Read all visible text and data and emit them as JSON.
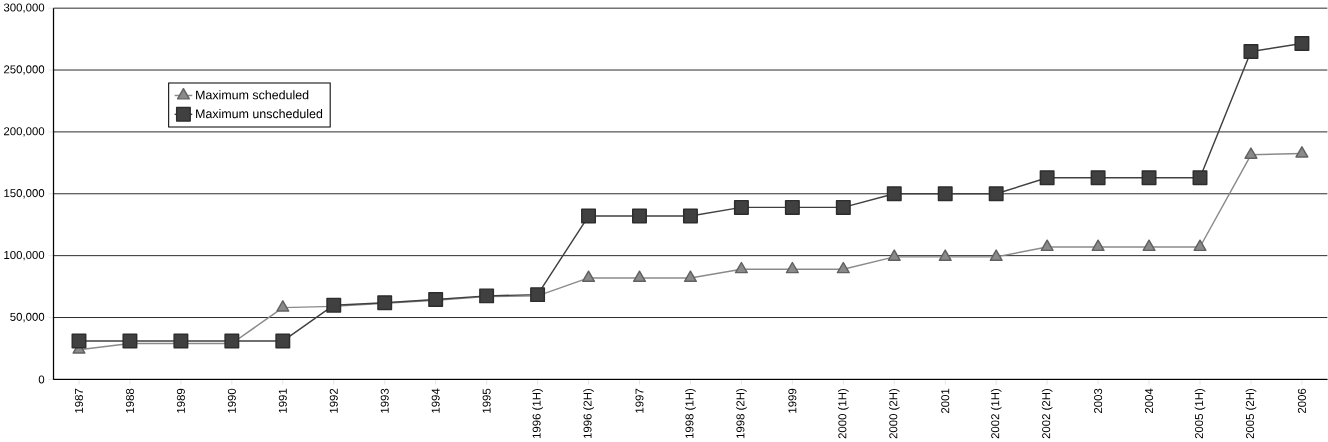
{
  "chart_data": {
    "type": "line",
    "categories": [
      "1987",
      "1988",
      "1989",
      "1990",
      "1991",
      "1992",
      "1993",
      "1994",
      "1995",
      "1996 (1H)",
      "1996 (2H)",
      "1997",
      "1998 (1H)",
      "1998 (2H)",
      "1999",
      "2000 (1H)",
      "2000 (2H)",
      "2001",
      "2002 (1H)",
      "2002 (2H)",
      "2003",
      "2004",
      "2005 (1H)",
      "2005 (2H)",
      "2006"
    ],
    "series": [
      {
        "name": "Maximum scheduled",
        "color": "#8a8a8a",
        "marker": "triangle",
        "values": [
          24000,
          29000,
          29000,
          29000,
          58000,
          59000,
          61500,
          64000,
          67000,
          67500,
          82000,
          82000,
          82000,
          89000,
          89000,
          89000,
          99000,
          99000,
          99000,
          107000,
          107000,
          107000,
          107000,
          181500,
          182500
        ]
      },
      {
        "name": "Maximum unscheduled",
        "color": "#404040",
        "marker": "square",
        "values": [
          31000,
          31000,
          31000,
          31000,
          31000,
          60000,
          62000,
          64500,
          67500,
          68500,
          132000,
          132000,
          132000,
          139000,
          139000,
          139000,
          150000,
          150000,
          150000,
          163000,
          163000,
          163000,
          163000,
          265000,
          271500
        ]
      }
    ],
    "ylim": [
      0,
      300000
    ],
    "yticks": [
      {
        "value": 0,
        "label": "0"
      },
      {
        "value": 50000,
        "label": "50,000"
      },
      {
        "value": 100000,
        "label": "100,000"
      },
      {
        "value": 150000,
        "label": "150,000"
      },
      {
        "value": 200000,
        "label": "200,000"
      },
      {
        "value": 250000,
        "label": "250,000"
      },
      {
        "value": 300000,
        "label": "300,000"
      }
    ],
    "grid": "y",
    "legend": "top left"
  }
}
